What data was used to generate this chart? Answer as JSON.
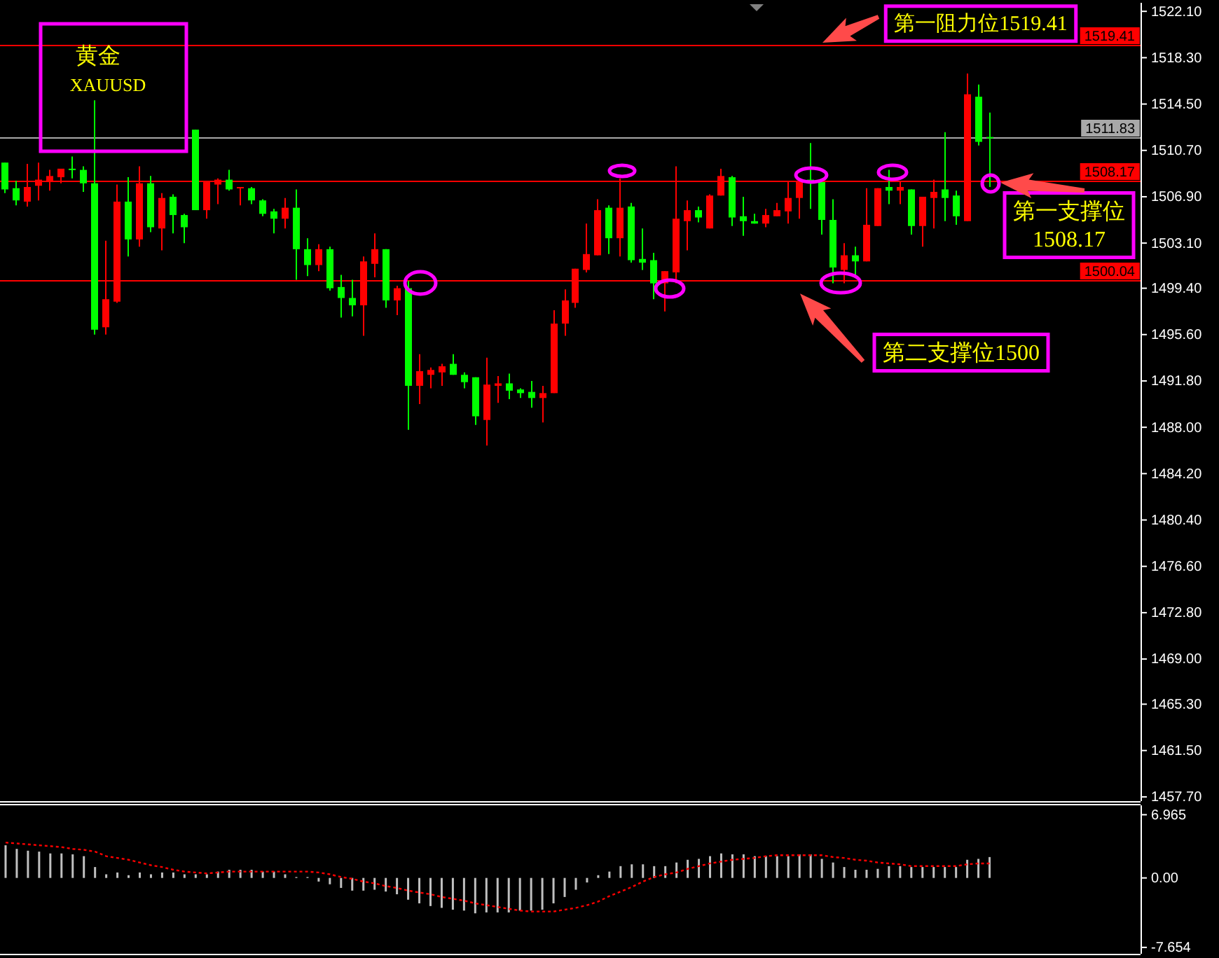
{
  "chart_data": [
    {
      "type": "candlestick",
      "title": "黄金",
      "subtitle": "XAUUSD",
      "categories": [
        null,
        null,
        null,
        null,
        null,
        null,
        null,
        null,
        null,
        null,
        null,
        null,
        null,
        null,
        null,
        null,
        null,
        null,
        null,
        null,
        null,
        null,
        null,
        null,
        null,
        null,
        null,
        null,
        null,
        null,
        null,
        null,
        null,
        null,
        null,
        null,
        null,
        null,
        null,
        null,
        null,
        null,
        null,
        null,
        null,
        null,
        null,
        null,
        null,
        null,
        null,
        null,
        null,
        null,
        null,
        null,
        null,
        null,
        null,
        null,
        null,
        null,
        null,
        null,
        null,
        null,
        null,
        null,
        null,
        null,
        null,
        null,
        null,
        null,
        null,
        null,
        null,
        null,
        null,
        null,
        null,
        null,
        null,
        null,
        null,
        null,
        null,
        null,
        null,
        null,
        null,
        null,
        null,
        null,
        null,
        null,
        null,
        null,
        null,
        null,
        null,
        null
      ],
      "ohlc": [
        [
          1509.7,
          1509.7,
          1507.2,
          1507.5
        ],
        [
          1507.6,
          1508.2,
          1506.2,
          1506.6
        ],
        [
          1506.5,
          1509.6,
          1506.1,
          1507.7
        ],
        [
          1507.8,
          1509.7,
          1506.6,
          1508.3
        ],
        [
          1508.1,
          1509.1,
          1507.4,
          1508.6
        ],
        [
          1508.5,
          1509.2,
          1508.0,
          1509.2
        ],
        [
          1509.2,
          1510.2,
          1508.4,
          1509.1
        ],
        [
          1509.1,
          1509.4,
          1507.3,
          1508.0
        ],
        [
          1508.0,
          1514.8,
          1495.6,
          1496.0
        ],
        [
          1496.2,
          1503.3,
          1495.6,
          1498.5
        ],
        [
          1498.3,
          1507.9,
          1498.2,
          1506.5
        ],
        [
          1506.5,
          1508.5,
          1502.0,
          1503.4
        ],
        [
          1503.4,
          1509.4,
          1502.8,
          1508.0
        ],
        [
          1508.0,
          1508.6,
          1504.0,
          1504.4
        ],
        [
          1504.3,
          1507.2,
          1502.5,
          1506.8
        ],
        [
          1506.9,
          1507.1,
          1503.9,
          1505.4
        ],
        [
          1505.4,
          1505.5,
          1503.1,
          1504.4
        ],
        [
          1512.4,
          1512.4,
          1505.8,
          1505.8
        ],
        [
          1505.8,
          1508.1,
          1505.1,
          1508.1
        ],
        [
          1507.9,
          1508.4,
          1506.3,
          1508.3
        ],
        [
          1508.3,
          1509.1,
          1507.4,
          1507.5
        ],
        [
          1507.6,
          1507.7,
          1506.2,
          1507.7
        ],
        [
          1507.6,
          1507.7,
          1506.3,
          1506.6
        ],
        [
          1506.6,
          1506.7,
          1505.3,
          1505.5
        ],
        [
          1505.7,
          1505.9,
          1503.9,
          1505.1
        ],
        [
          1505.1,
          1506.8,
          1504.3,
          1506.0
        ],
        [
          1506.0,
          1507.5,
          1500.1,
          1502.6
        ],
        [
          1502.6,
          1503.5,
          1500.4,
          1501.3
        ],
        [
          1501.3,
          1503.0,
          1500.8,
          1502.6
        ],
        [
          1502.6,
          1502.8,
          1499.2,
          1499.4
        ],
        [
          1499.5,
          1500.5,
          1497.0,
          1498.6
        ],
        [
          1498.6,
          1500.1,
          1497.1,
          1498.0
        ],
        [
          1498.0,
          1502.0,
          1495.5,
          1501.6
        ],
        [
          1501.4,
          1503.9,
          1500.3,
          1502.6
        ],
        [
          1502.6,
          1502.6,
          1497.8,
          1498.4
        ],
        [
          1498.4,
          1499.6,
          1497.2,
          1499.4
        ],
        [
          1499.4,
          1500.0,
          1487.8,
          1491.4
        ],
        [
          1491.4,
          1494.0,
          1489.9,
          1492.6
        ],
        [
          1492.3,
          1492.9,
          1491.2,
          1492.7
        ],
        [
          1492.5,
          1493.2,
          1491.4,
          1493.0
        ],
        [
          1493.2,
          1494.0,
          1492.3,
          1492.3
        ],
        [
          1492.3,
          1492.5,
          1491.2,
          1491.7
        ],
        [
          1492.1,
          1492.1,
          1488.2,
          1488.9
        ],
        [
          1488.6,
          1493.7,
          1486.5,
          1491.5
        ],
        [
          1491.4,
          1492.2,
          1490.0,
          1491.6
        ],
        [
          1491.6,
          1492.4,
          1490.3,
          1491.0
        ],
        [
          1491.1,
          1491.2,
          1490.4,
          1490.8
        ],
        [
          1490.9,
          1491.8,
          1489.6,
          1490.4
        ],
        [
          1490.4,
          1491.4,
          1488.4,
          1490.8
        ],
        [
          1490.8,
          1497.6,
          1490.8,
          1496.5
        ],
        [
          1496.5,
          1499.3,
          1495.5,
          1498.4
        ],
        [
          1498.2,
          1501.0,
          1497.8,
          1501.0
        ],
        [
          1500.9,
          1504.7,
          1500.7,
          1502.2
        ],
        [
          1502.1,
          1506.7,
          1502.1,
          1505.8
        ],
        [
          1506.0,
          1506.2,
          1502.2,
          1503.5
        ],
        [
          1503.5,
          1508.4,
          1502.0,
          1506.0
        ],
        [
          1506.1,
          1506.4,
          1501.5,
          1501.7
        ],
        [
          1501.8,
          1504.3,
          1500.9,
          1501.5
        ],
        [
          1501.7,
          1502.3,
          1498.5,
          1499.8
        ],
        [
          1499.8,
          1500.8,
          1497.5,
          1500.8
        ],
        [
          1500.7,
          1509.4,
          1499.8,
          1505.1
        ],
        [
          1504.9,
          1506.6,
          1502.5,
          1505.8
        ],
        [
          1505.8,
          1506.1,
          1504.8,
          1505.2
        ],
        [
          1504.3,
          1507.1,
          1504.3,
          1507.0
        ],
        [
          1507.0,
          1509.2,
          1507.0,
          1508.6
        ],
        [
          1508.5,
          1508.6,
          1504.5,
          1505.2
        ],
        [
          1505.3,
          1506.9,
          1503.7,
          1504.9
        ],
        [
          1504.9,
          1505.5,
          1504.7,
          1504.7
        ],
        [
          1504.7,
          1505.9,
          1504.4,
          1505.4
        ],
        [
          1505.3,
          1506.4,
          1505.3,
          1505.8
        ],
        [
          1505.7,
          1508.1,
          1504.7,
          1506.8
        ],
        [
          1506.8,
          1508.4,
          1505.1,
          1508.1
        ],
        [
          1508.3,
          1511.3,
          1505.9,
          1508.0
        ],
        [
          1508.1,
          1508.1,
          1503.8,
          1505.0
        ],
        [
          1505.0,
          1506.7,
          1499.8,
          1501.1
        ],
        [
          1500.9,
          1503.1,
          1499.8,
          1502.1
        ],
        [
          1502.1,
          1502.8,
          1500.3,
          1501.6
        ],
        [
          1501.6,
          1507.6,
          1501.6,
          1504.6
        ],
        [
          1504.5,
          1507.6,
          1504.5,
          1507.6
        ],
        [
          1507.7,
          1509.1,
          1506.3,
          1507.4
        ],
        [
          1507.4,
          1508.1,
          1506.3,
          1507.7
        ],
        [
          1507.5,
          1507.5,
          1503.8,
          1504.5
        ],
        [
          1504.5,
          1506.9,
          1502.8,
          1506.9
        ],
        [
          1506.8,
          1508.3,
          1504.3,
          1507.3
        ],
        [
          1507.5,
          1512.2,
          1504.9,
          1506.8
        ],
        [
          1507.0,
          1507.4,
          1504.6,
          1505.3
        ],
        [
          1504.9,
          1517.0,
          1504.9,
          1515.3
        ],
        [
          1515.1,
          1516.1,
          1511.1,
          1511.4
        ],
        [
          1511.8,
          1513.8,
          1507.7,
          1511.8
        ],
        null,
        null,
        null,
        null,
        null,
        null,
        null,
        null,
        null,
        null,
        null,
        null,
        null
      ],
      "colors": [
        "#00ff00",
        "#00ff00",
        "#ff0000",
        "#ff0000",
        "#ff0000",
        "#ff0000",
        "#00ff00",
        "#00ff00",
        "#00ff00",
        "#ff0000",
        "#ff0000",
        "#00ff00",
        "#ff0000",
        "#00ff00",
        "#ff0000",
        "#00ff00",
        "#00ff00",
        "#00ff00",
        "#ff0000",
        "#ff0000",
        "#00ff00",
        "#ff0000",
        "#00ff00",
        "#00ff00",
        "#00ff00",
        "#ff0000",
        "#00ff00",
        "#00ff00",
        "#ff0000",
        "#00ff00",
        "#00ff00",
        "#00ff00",
        "#ff0000",
        "#ff0000",
        "#00ff00",
        "#ff0000",
        "#00ff00",
        "#ff0000",
        "#ff0000",
        "#ff0000",
        "#00ff00",
        "#00ff00",
        "#00ff00",
        "#ff0000",
        "#ff0000",
        "#00ff00",
        "#00ff00",
        "#00ff00",
        "#ff0000",
        "#ff0000",
        "#ff0000",
        "#ff0000",
        "#ff0000",
        "#ff0000",
        "#00ff00",
        "#ff0000",
        "#00ff00",
        "#00ff00",
        "#00ff00",
        "#ff0000",
        "#ff0000",
        "#ff0000",
        "#00ff00",
        "#ff0000",
        "#ff0000",
        "#00ff00",
        "#00ff00",
        "#00ff00",
        "#ff0000",
        "#ff0000",
        "#ff0000",
        "#ff0000",
        "#00ff00",
        "#00ff00",
        "#00ff00",
        "#ff0000",
        "#00ff00",
        "#ff0000",
        "#ff0000",
        "#00ff00",
        "#ff0000",
        "#00ff00",
        "#ff0000",
        "#ff0000",
        "#00ff00",
        "#00ff00",
        "#ff0000",
        "#00ff00",
        "#00ff00",
        null,
        null,
        null,
        null,
        null,
        null,
        null,
        null,
        null,
        null,
        null,
        null,
        null
      ],
      "ylim": [
        1457.35,
        1522.8
      ],
      "yticks": [
        {
          "value": 1522.1,
          "label": "1522.10"
        },
        {
          "value": 1518.3,
          "label": "1518.30"
        },
        {
          "value": 1514.5,
          "label": "1514.50"
        },
        {
          "value": 1510.7,
          "label": "1510.70"
        },
        {
          "value": 1506.9,
          "label": "1506.90"
        },
        {
          "value": 1503.1,
          "label": "1503.10"
        },
        {
          "value": 1499.4,
          "label": "1499.40"
        },
        {
          "value": 1495.6,
          "label": "1495.60"
        },
        {
          "value": 1491.8,
          "label": "1491.80"
        },
        {
          "value": 1488,
          "label": "1488.00"
        },
        {
          "value": 1484.2,
          "label": "1484.20"
        },
        {
          "value": 1480.4,
          "label": "1480.40"
        },
        {
          "value": 1476.6,
          "label": "1476.60"
        },
        {
          "value": 1472.8,
          "label": "1472.80"
        },
        {
          "value": 1469,
          "label": "1469.00"
        },
        {
          "value": 1465.3,
          "label": "1465.30"
        },
        {
          "value": 1461.5,
          "label": "1461.50"
        },
        {
          "value": 1457.7,
          "label": "1457.70"
        }
      ],
      "tick_labels": "y",
      "ref_lines": [
        {
          "axis": "y",
          "value": 1519.41,
          "label": "1519.41",
          "color": "#ff0000"
        },
        {
          "axis": "y",
          "value": 1511.83,
          "label": "1511.83",
          "color": "#a8a8a8"
        },
        {
          "axis": "y",
          "value": 1508.17,
          "label": "1508.17",
          "color": "#ff0000"
        },
        {
          "axis": "y",
          "value": 1500.04,
          "label": "1500.04",
          "color": "#ff0000"
        }
      ],
      "annotations": [
        {
          "text": "第一阻力位1519.41",
          "y": 1519.41
        },
        {
          "text": "第一支撑位1508.17",
          "y": 1508.17
        },
        {
          "text": "第二支撑位1500",
          "y": 1500
        }
      ]
    },
    {
      "type": "bar",
      "categories": [
        null,
        null,
        null,
        null,
        null,
        null,
        null,
        null,
        null,
        null,
        null,
        null,
        null,
        null,
        null,
        null,
        null,
        null,
        null,
        null,
        null,
        null,
        null,
        null,
        null,
        null,
        null,
        null,
        null,
        null,
        null,
        null,
        null,
        null,
        null,
        null,
        null,
        null,
        null,
        null,
        null,
        null,
        null,
        null,
        null,
        null,
        null,
        null,
        null,
        null,
        null,
        null,
        null,
        null,
        null,
        null,
        null,
        null,
        null,
        null,
        null,
        null,
        null,
        null,
        null,
        null,
        null,
        null,
        null,
        null,
        null,
        null,
        null,
        null,
        null,
        null,
        null,
        null,
        null,
        null,
        null,
        null,
        null,
        null,
        null,
        null,
        null,
        null,
        null,
        null,
        null,
        null,
        null,
        null,
        null,
        null,
        null,
        null,
        null,
        null,
        null,
        null
      ],
      "series": [
        {
          "type": "bar",
          "color": "#c0c0c0",
          "values": [
            3.6,
            3.2,
            3.0,
            2.9,
            2.7,
            2.7,
            2.6,
            2.4,
            1.2,
            0.4,
            0.6,
            0.3,
            0.6,
            0.4,
            0.6,
            0.6,
            0.4,
            0.4,
            0.4,
            0.7,
            0.9,
            0.9,
            0.9,
            0.7,
            0.7,
            0.4,
            0.1,
            0.1,
            -0.4,
            -0.7,
            -1.1,
            -1.4,
            -1.4,
            -1.3,
            -1.5,
            -1.8,
            -2.4,
            -2.8,
            -3.1,
            -3.3,
            -3.5,
            -3.6,
            -3.9,
            -3.8,
            -3.8,
            -3.8,
            -3.6,
            -3.6,
            -3.5,
            -2.8,
            -2.1,
            -1.3,
            -0.5,
            0.3,
            0.7,
            1.3,
            1.5,
            1.5,
            1.3,
            1.3,
            1.7,
            2.0,
            2.1,
            2.4,
            2.7,
            2.6,
            2.6,
            2.4,
            2.4,
            2.4,
            2.4,
            2.6,
            2.6,
            2.1,
            1.7,
            1.2,
            0.9,
            0.9,
            1.0,
            1.3,
            1.3,
            1.2,
            1.2,
            1.2,
            1.2,
            1.2,
            2.0,
            2.1,
            2.3,
            null,
            null,
            null,
            null,
            null,
            null,
            null,
            null,
            null,
            null,
            null,
            null,
            null
          ]
        },
        {
          "type": "line",
          "color": "#ff0000",
          "line_style": "dotted",
          "values": [
            3.9,
            3.8,
            3.7,
            3.6,
            3.5,
            3.4,
            3.2,
            3.1,
            2.9,
            2.4,
            2.2,
            2.0,
            1.7,
            1.4,
            1.2,
            0.9,
            0.7,
            0.6,
            0.5,
            0.6,
            0.7,
            0.7,
            0.7,
            0.7,
            0.7,
            0.7,
            0.7,
            0.7,
            0.6,
            0.4,
            0.1,
            -0.1,
            -0.4,
            -0.6,
            -0.9,
            -1.1,
            -1.4,
            -1.6,
            -1.8,
            -2.1,
            -2.3,
            -2.5,
            -2.8,
            -3.0,
            -3.2,
            -3.4,
            -3.6,
            -3.7,
            -3.7,
            -3.7,
            -3.5,
            -3.3,
            -3.0,
            -2.6,
            -2.0,
            -1.5,
            -1.0,
            -0.4,
            0.1,
            0.4,
            0.6,
            1.0,
            1.3,
            1.6,
            1.8,
            2.0,
            2.1,
            2.2,
            2.4,
            2.5,
            2.5,
            2.5,
            2.5,
            2.5,
            2.3,
            2.2,
            2.0,
            1.9,
            1.7,
            1.6,
            1.5,
            1.3,
            1.3,
            1.3,
            1.3,
            1.3,
            1.5,
            1.6,
            1.6,
            null,
            null,
            null,
            null,
            null,
            null,
            null,
            null,
            null,
            null,
            null,
            null,
            null
          ]
        }
      ],
      "ylim": [
        -8.36,
        8.0
      ],
      "yticks": [
        6.965,
        {
          "value": 0,
          "label": "0.00"
        },
        -7.654
      ],
      "tick_labels": "y"
    }
  ]
}
